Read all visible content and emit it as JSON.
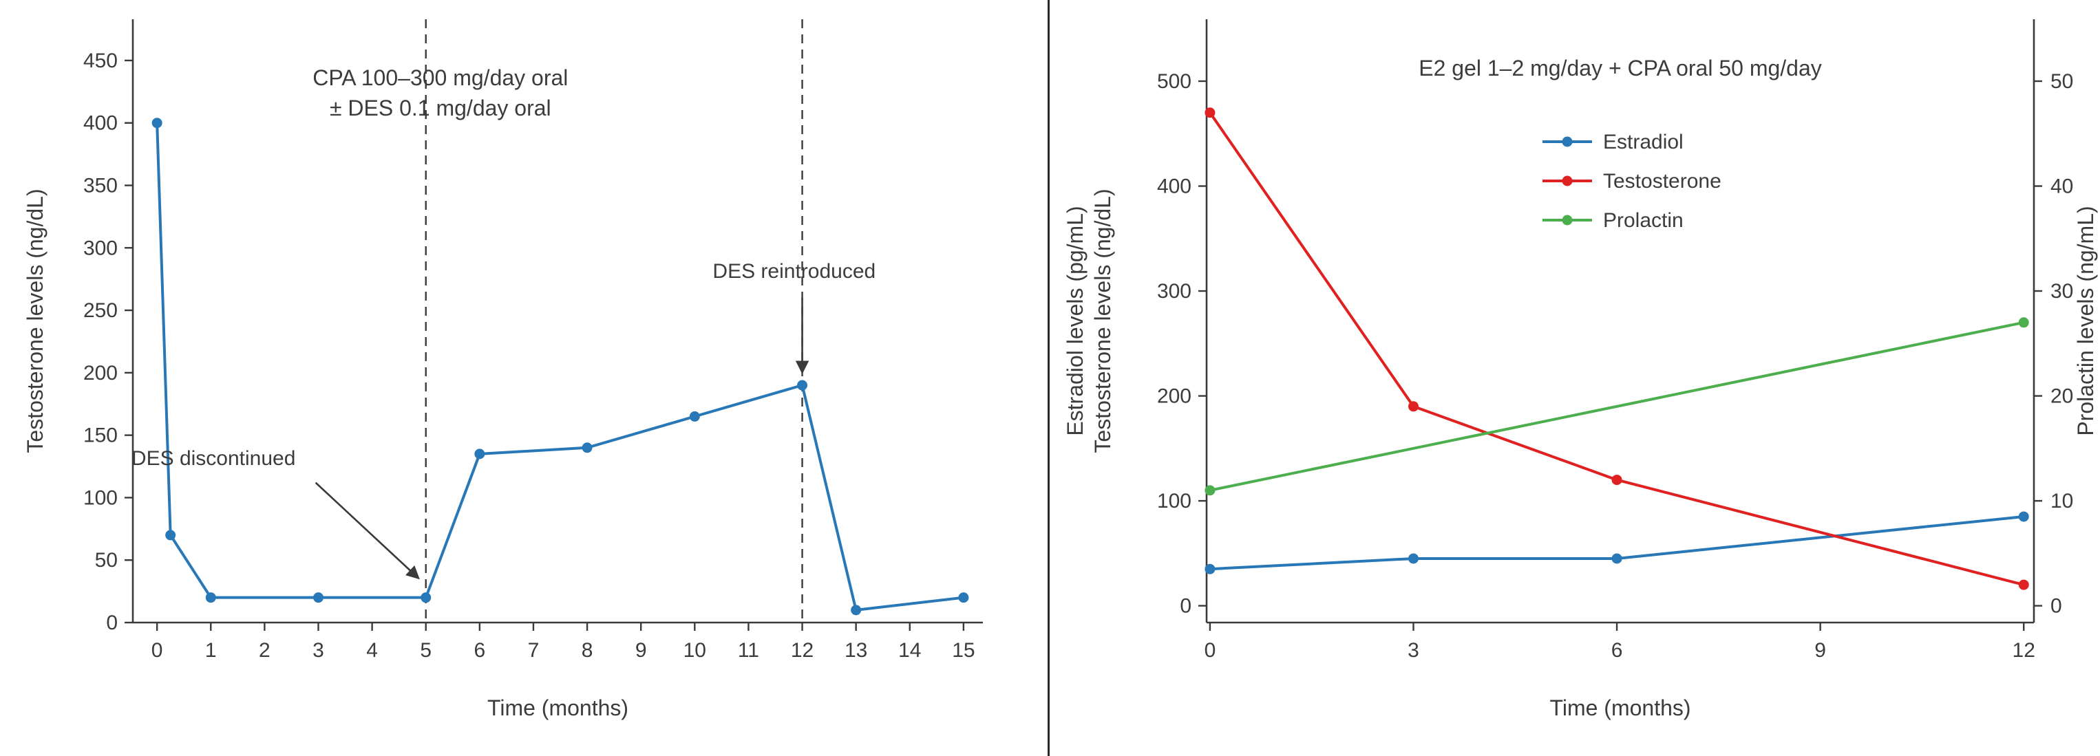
{
  "page": {
    "background_color": "#ffffff",
    "divider_color": "#2b2b2b",
    "axis_color": "#3a3a3a",
    "text_color": "#3c3c3c"
  },
  "chart_data": [
    {
      "type": "line",
      "panel": "left",
      "xlabel": "Time (months)",
      "ylabel": "Testosterone levels (ng/dL)",
      "xlim": [
        -0.45,
        15.36
      ],
      "ylim": [
        0,
        483
      ],
      "xticks": [
        0,
        1,
        2,
        3,
        4,
        5,
        6,
        7,
        8,
        9,
        10,
        11,
        12,
        13,
        14,
        15
      ],
      "yticks": [
        0,
        50,
        100,
        150,
        200,
        250,
        300,
        350,
        400,
        450
      ],
      "grid": false,
      "series": [
        {
          "name": "Testosterone",
          "color": "#2878b8",
          "x": [
            0,
            0.25,
            1,
            3,
            5,
            6,
            8,
            10,
            12,
            13,
            15
          ],
          "y": [
            400,
            70,
            20,
            20,
            20,
            135,
            140,
            165,
            190,
            10,
            20
          ]
        }
      ],
      "vlines": [
        5,
        12
      ],
      "annotation": {
        "lines": [
          "CPA 100–300 mg/day oral",
          "± DES 0.1 mg/day oral"
        ],
        "x": 5.27,
        "y": 430
      },
      "callouts": [
        {
          "text": "DES discontinued",
          "text_x": 1.05,
          "text_y": 126,
          "arrow": {
            "x1": 2.95,
            "y1": 112,
            "x2": 4.85,
            "y2": 36
          }
        },
        {
          "text": "DES reintroduced",
          "text_x": 11.85,
          "text_y": 276,
          "arrow": {
            "x1": 12,
            "y1": 260,
            "x2": 12,
            "y2": 201
          }
        }
      ]
    },
    {
      "type": "line",
      "panel": "right",
      "title": "E2 gel 1–2 mg/day + CPA oral 50 mg/day",
      "xlabel": "Time (months)",
      "ylabel_lines": [
        "Estradiol levels (pg/mL)",
        "Testosterone levels (ng/dL)"
      ],
      "ylabel_right": "Prolactin levels (ng/mL)",
      "xlim": [
        -0.05,
        12.15
      ],
      "ylim": [
        -16,
        559
      ],
      "ylim_right": [
        -1.6,
        55.9
      ],
      "xticks": [
        0,
        3,
        6,
        9,
        12
      ],
      "yticks": [
        0,
        100,
        200,
        300,
        400,
        500
      ],
      "yticks_right": [
        0,
        10,
        20,
        30,
        40,
        50
      ],
      "grid": false,
      "legend": {
        "position": "upper-center",
        "entries": [
          "Estradiol",
          "Testosterone",
          "Prolactin"
        ]
      },
      "series": [
        {
          "name": "Estradiol",
          "color": "#2878b8",
          "axis": "left",
          "x": [
            0,
            3,
            6,
            12
          ],
          "y": [
            35,
            45,
            45,
            85
          ]
        },
        {
          "name": "Testosterone",
          "color": "#e02121",
          "axis": "left",
          "x": [
            0,
            3,
            6,
            12
          ],
          "y": [
            470,
            190,
            120,
            20
          ]
        },
        {
          "name": "Prolactin",
          "color": "#4cae4c",
          "axis": "right",
          "x": [
            0,
            12
          ],
          "y": [
            11,
            27
          ]
        }
      ]
    }
  ]
}
